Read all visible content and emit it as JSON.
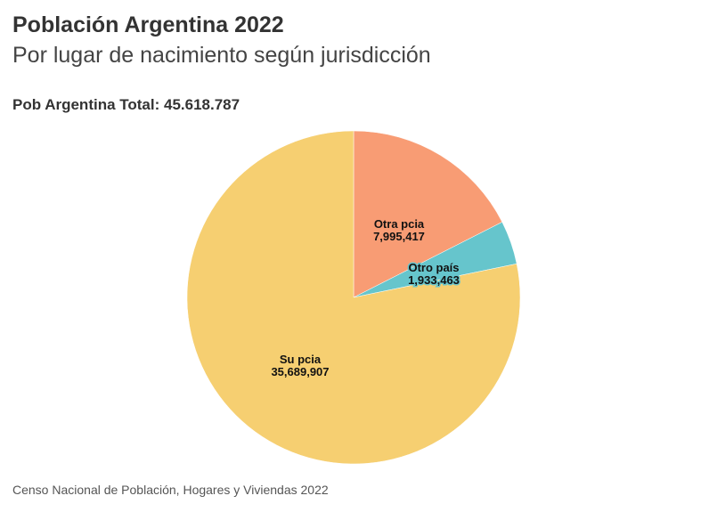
{
  "title": "Población Argentina 2022",
  "subtitle": "Por lugar de nacimiento según jurisdicción",
  "total_label": "Pob Argentina Total: 45.618.787",
  "source": "Censo Nacional de Población, Hogares y Viviendas 2022",
  "chart_data": {
    "type": "pie",
    "title": "Población Argentina 2022",
    "start": "12 o'clock, clockwise",
    "slices": [
      {
        "name": "Otra pcia",
        "value": 7995417,
        "display": "7,995,417",
        "color": "#F89C74"
      },
      {
        "name": "Otro país",
        "value": 1933463,
        "display": "1,933,463",
        "color": "#66C5CC"
      },
      {
        "name": "Su pcia",
        "value": 35689907,
        "display": "35,689,907",
        "color": "#F6CF71"
      }
    ]
  }
}
